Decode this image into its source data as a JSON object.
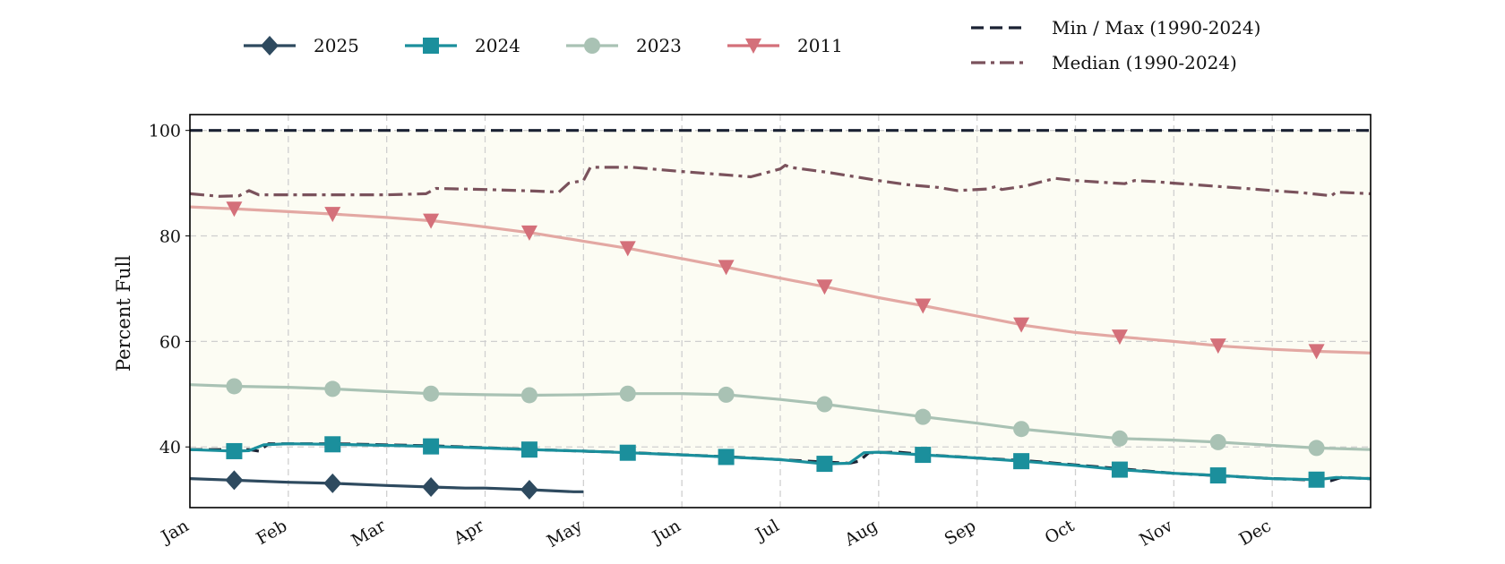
{
  "chart_data": {
    "type": "line",
    "title": "",
    "xlabel": "",
    "ylabel": "Percent Full",
    "x_categories": [
      "Jan",
      "Feb",
      "Mar",
      "Apr",
      "May",
      "Jun",
      "Jul",
      "Aug",
      "Sep",
      "Oct",
      "Nov",
      "Dec"
    ],
    "yticks": [
      40,
      60,
      80,
      100
    ],
    "ylim": [
      28.5,
      103
    ],
    "xlim": [
      0,
      12
    ],
    "grid": true,
    "plot_background": "#fcfcf3",
    "band": {
      "between": [
        "Min / Max (1990-2024) lower",
        "Min / Max (1990-2024) upper"
      ]
    },
    "legend_left": {
      "placement": "top-center",
      "entries": [
        {
          "label": "2025",
          "color": "#2e4a5f",
          "marker": "diamond"
        },
        {
          "label": "2024",
          "color": "#1b8f9c",
          "marker": "square"
        },
        {
          "label": "2023",
          "color": "#a9c2b4",
          "marker": "circle"
        },
        {
          "label": "2011",
          "color": "#d4707a",
          "marker": "triangle-down"
        }
      ]
    },
    "legend_right": {
      "placement": "top-right",
      "entries": [
        {
          "label": "Min / Max (1990-2024)",
          "color": "#1b2233",
          "style": "dashed"
        },
        {
          "label": "Median (1990-2024)",
          "color": "#7a525c",
          "style": "dashdot"
        }
      ]
    },
    "series": [
      {
        "name": "Min / Max (1990-2024)",
        "role": "upper",
        "color": "#1b2233",
        "style": "dashed",
        "points": [
          [
            0,
            100
          ],
          [
            12,
            100
          ]
        ]
      },
      {
        "name": "Min / Max (1990-2024)",
        "role": "lower",
        "color": "#1b2233",
        "style": "dashed",
        "points": [
          [
            0,
            39.5
          ],
          [
            0.6,
            39.5
          ],
          [
            0.7,
            39.2
          ],
          [
            0.8,
            40.6
          ],
          [
            1.5,
            40.6
          ],
          [
            2.5,
            40.2
          ],
          [
            3.5,
            39.5
          ],
          [
            4.5,
            38.9
          ],
          [
            5.5,
            38.1
          ],
          [
            6.2,
            37.4
          ],
          [
            6.7,
            36.9
          ],
          [
            6.8,
            37.3
          ],
          [
            6.9,
            38.9
          ],
          [
            7.2,
            39.0
          ],
          [
            7.5,
            38.5
          ],
          [
            8.0,
            37.9
          ],
          [
            8.5,
            37.4
          ],
          [
            9.0,
            36.6
          ],
          [
            9.5,
            35.8
          ],
          [
            10.0,
            35.0
          ],
          [
            10.5,
            34.5
          ],
          [
            11.0,
            34.0
          ],
          [
            11.6,
            33.6
          ],
          [
            11.7,
            34.2
          ],
          [
            12,
            34.0
          ]
        ]
      },
      {
        "name": "Median (1990-2024)",
        "color": "#7a525c",
        "style": "dashdot",
        "points": [
          [
            0,
            88
          ],
          [
            0.3,
            87.5
          ],
          [
            0.5,
            87.6
          ],
          [
            0.6,
            88.6
          ],
          [
            0.7,
            87.8
          ],
          [
            1.5,
            87.8
          ],
          [
            2.0,
            87.8
          ],
          [
            2.4,
            88.0
          ],
          [
            2.5,
            89.0
          ],
          [
            3.0,
            88.8
          ],
          [
            3.5,
            88.5
          ],
          [
            3.75,
            88.3
          ],
          [
            3.85,
            90.0
          ],
          [
            4.0,
            90.5
          ],
          [
            4.07,
            93.0
          ],
          [
            4.5,
            93.0
          ],
          [
            5.0,
            92.2
          ],
          [
            5.5,
            91.5
          ],
          [
            5.7,
            91.2
          ],
          [
            6.0,
            92.7
          ],
          [
            6.05,
            93.4
          ],
          [
            6.1,
            93.0
          ],
          [
            6.5,
            92.0
          ],
          [
            7.0,
            90.5
          ],
          [
            7.3,
            89.7
          ],
          [
            7.6,
            89.2
          ],
          [
            7.8,
            88.6
          ],
          [
            8.1,
            88.9
          ],
          [
            8.2,
            89.4
          ],
          [
            8.25,
            88.8
          ],
          [
            8.5,
            89.5
          ],
          [
            8.7,
            90.5
          ],
          [
            8.8,
            90.9
          ],
          [
            9.0,
            90.5
          ],
          [
            9.5,
            89.9
          ],
          [
            9.6,
            90.5
          ],
          [
            9.8,
            90.3
          ],
          [
            10.0,
            90.0
          ],
          [
            10.5,
            89.3
          ],
          [
            10.8,
            88.9
          ],
          [
            11.0,
            88.6
          ],
          [
            11.3,
            88.2
          ],
          [
            11.6,
            87.6
          ],
          [
            11.65,
            88.3
          ],
          [
            12,
            88.0
          ]
        ]
      },
      {
        "name": "2011",
        "color": "#e3a8a3",
        "marker_color": "#d4707a",
        "marker": "triangle-down",
        "points": [
          [
            0,
            85.5
          ],
          [
            0.5,
            85.1
          ],
          [
            1.0,
            84.6
          ],
          [
            1.5,
            84.1
          ],
          [
            2.0,
            83.5
          ],
          [
            2.5,
            82.8
          ],
          [
            3.0,
            81.7
          ],
          [
            3.5,
            80.5
          ],
          [
            4.0,
            79.0
          ],
          [
            4.5,
            77.5
          ],
          [
            5.0,
            75.7
          ],
          [
            5.5,
            73.9
          ],
          [
            6.0,
            72.0
          ],
          [
            6.5,
            70.2
          ],
          [
            7.0,
            68.3
          ],
          [
            7.5,
            66.6
          ],
          [
            8.0,
            64.8
          ],
          [
            8.5,
            63.0
          ],
          [
            9.0,
            61.7
          ],
          [
            9.5,
            60.8
          ],
          [
            10.0,
            60.0
          ],
          [
            10.5,
            59.1
          ],
          [
            11.0,
            58.5
          ],
          [
            11.5,
            58.1
          ],
          [
            12,
            57.8
          ]
        ],
        "marker_x": [
          0.45,
          1.45,
          2.45,
          3.45,
          4.45,
          5.45,
          6.45,
          7.45,
          8.45,
          9.45,
          10.45,
          11.45
        ]
      },
      {
        "name": "2023",
        "color": "#a9c2b4",
        "marker": "circle",
        "points": [
          [
            0,
            51.8
          ],
          [
            0.45,
            51.5
          ],
          [
            1.0,
            51.3
          ],
          [
            1.45,
            51.0
          ],
          [
            2.0,
            50.5
          ],
          [
            2.45,
            50.1
          ],
          [
            3.0,
            49.9
          ],
          [
            3.45,
            49.8
          ],
          [
            4.0,
            49.9
          ],
          [
            4.45,
            50.1
          ],
          [
            5.0,
            50.1
          ],
          [
            5.45,
            49.9
          ],
          [
            6.0,
            49.0
          ],
          [
            6.45,
            48.1
          ],
          [
            7.0,
            46.8
          ],
          [
            7.45,
            45.7
          ],
          [
            8.0,
            44.5
          ],
          [
            8.45,
            43.4
          ],
          [
            9.0,
            42.4
          ],
          [
            9.45,
            41.6
          ],
          [
            10.0,
            41.3
          ],
          [
            10.45,
            40.9
          ],
          [
            11.0,
            40.3
          ],
          [
            11.45,
            39.8
          ],
          [
            12,
            39.5
          ]
        ],
        "marker_x": [
          0.45,
          1.45,
          2.45,
          3.45,
          4.45,
          5.45,
          6.45,
          7.45,
          8.45,
          9.45,
          10.45,
          11.45
        ]
      },
      {
        "name": "2024",
        "color": "#1b8f9c",
        "marker": "square",
        "points": [
          [
            0,
            39.5
          ],
          [
            0.45,
            39.2
          ],
          [
            0.6,
            39.3
          ],
          [
            0.75,
            40.4
          ],
          [
            1.0,
            40.6
          ],
          [
            1.45,
            40.5
          ],
          [
            2.0,
            40.3
          ],
          [
            2.45,
            40.1
          ],
          [
            3.0,
            39.8
          ],
          [
            3.45,
            39.5
          ],
          [
            4.0,
            39.2
          ],
          [
            4.45,
            38.9
          ],
          [
            5.0,
            38.5
          ],
          [
            5.45,
            38.1
          ],
          [
            6.0,
            37.6
          ],
          [
            6.45,
            36.8
          ],
          [
            6.7,
            36.9
          ],
          [
            6.85,
            38.9
          ],
          [
            7.0,
            39.0
          ],
          [
            7.45,
            38.5
          ],
          [
            8.0,
            37.9
          ],
          [
            8.45,
            37.3
          ],
          [
            9.0,
            36.5
          ],
          [
            9.45,
            35.7
          ],
          [
            10.0,
            35.0
          ],
          [
            10.45,
            34.6
          ],
          [
            11.0,
            34.0
          ],
          [
            11.45,
            33.8
          ],
          [
            11.65,
            34.2
          ],
          [
            12,
            34.0
          ]
        ],
        "marker_x": [
          0.45,
          1.45,
          2.45,
          3.45,
          4.45,
          5.45,
          6.45,
          7.45,
          8.45,
          9.45,
          10.45,
          11.45
        ]
      },
      {
        "name": "2025",
        "color": "#2e4a5f",
        "marker": "diamond",
        "points": [
          [
            0,
            34.0
          ],
          [
            0.45,
            33.7
          ],
          [
            1.0,
            33.3
          ],
          [
            1.45,
            33.1
          ],
          [
            2.0,
            32.7
          ],
          [
            2.45,
            32.4
          ],
          [
            2.8,
            32.2
          ],
          [
            3.0,
            32.2
          ],
          [
            3.45,
            31.9
          ],
          [
            3.9,
            31.5
          ],
          [
            4.0,
            31.5
          ]
        ],
        "marker_x": [
          0.45,
          1.45,
          2.45,
          3.45
        ]
      }
    ]
  }
}
